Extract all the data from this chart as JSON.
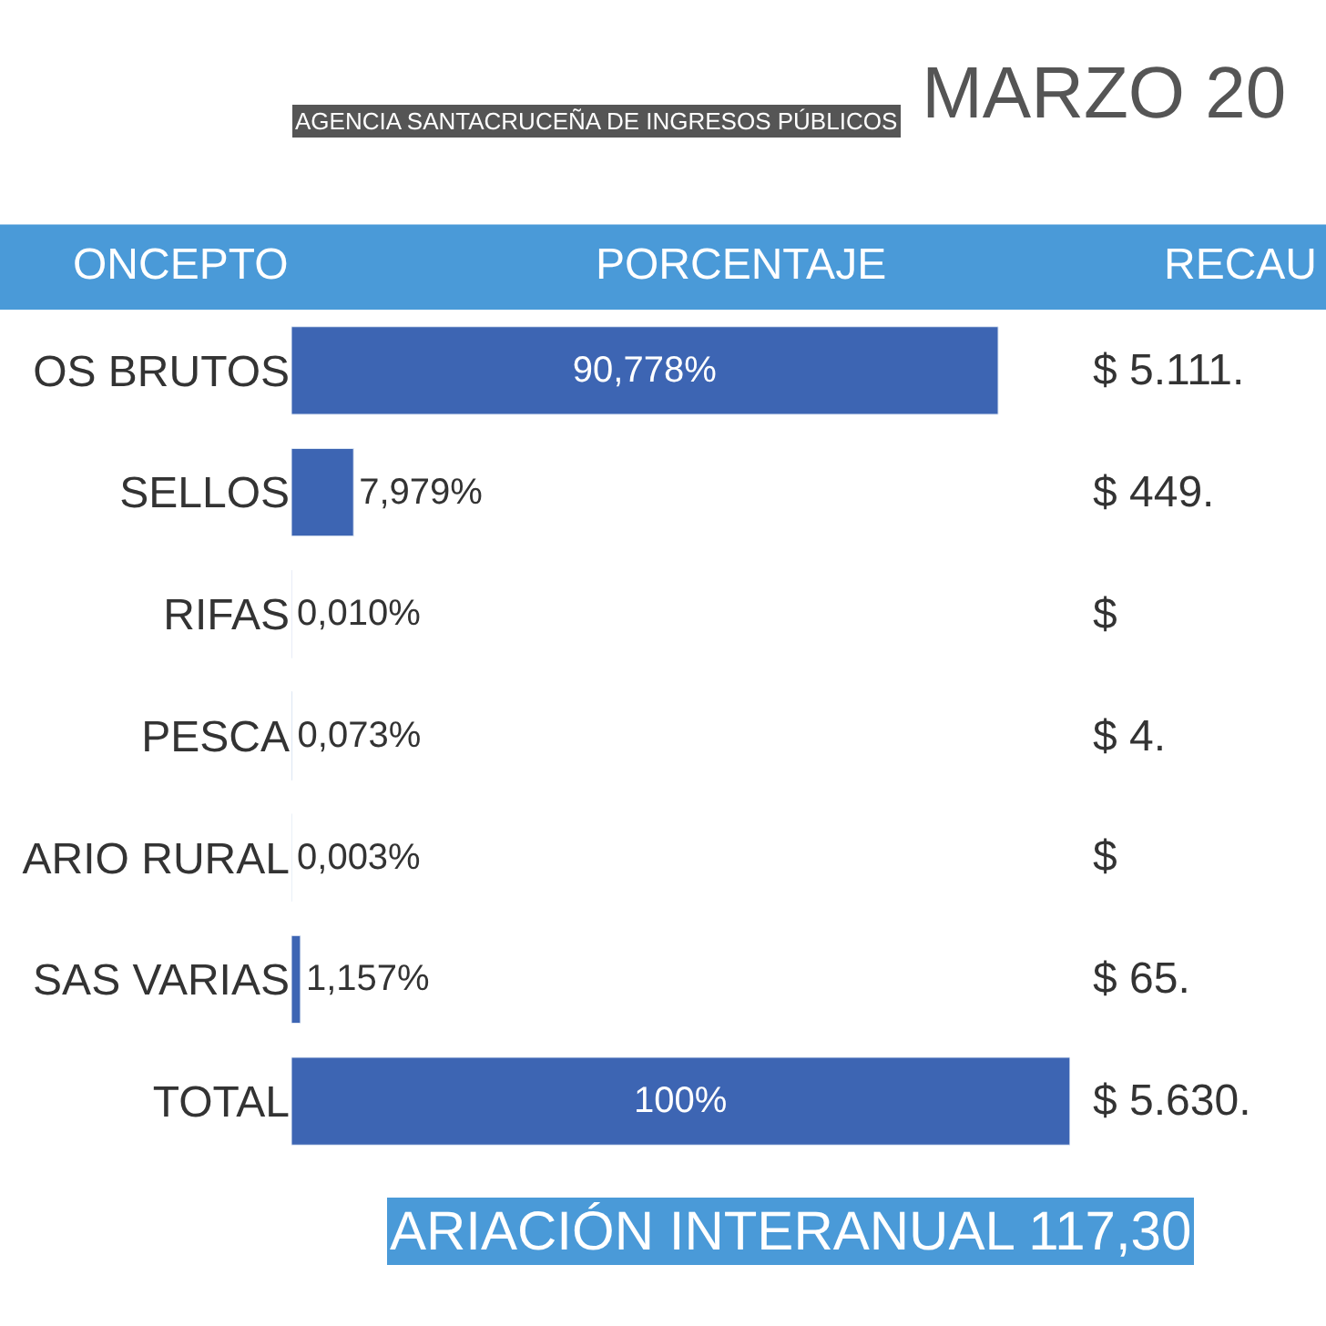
{
  "chart_data": {
    "type": "bar",
    "orientation": "horizontal",
    "title": "MARZO 20",
    "subtitle": "AGENCIA SANTACRUCEÑA DE INGRESOS PÚBLICOS",
    "categories": [
      "OS BRUTOS",
      "SELLOS",
      "RIFAS",
      "PESCA",
      "ARIO RURAL",
      "SAS VARIAS",
      "TOTAL"
    ],
    "values": [
      90.778,
      7.979,
      0.01,
      0.073,
      0.003,
      1.157,
      100
    ],
    "value_labels": [
      "90,778%",
      "7,979%",
      "0,010%",
      "0,073%",
      "0,003%",
      "1,157%",
      "100%"
    ],
    "color": "#3d65b3",
    "xlim": [
      0,
      100
    ],
    "legend": false,
    "tick_labels": "y",
    "annotations": [
      "ONCEPTO",
      "PORCENTAJE",
      "RECAU",
      "$ 5.111.",
      "$ 449.",
      "$",
      "$ 4.",
      "$",
      "$ 65.",
      "$ 5.630.",
      "ARIACIÓN INTERANUAL 117,30"
    ]
  }
}
